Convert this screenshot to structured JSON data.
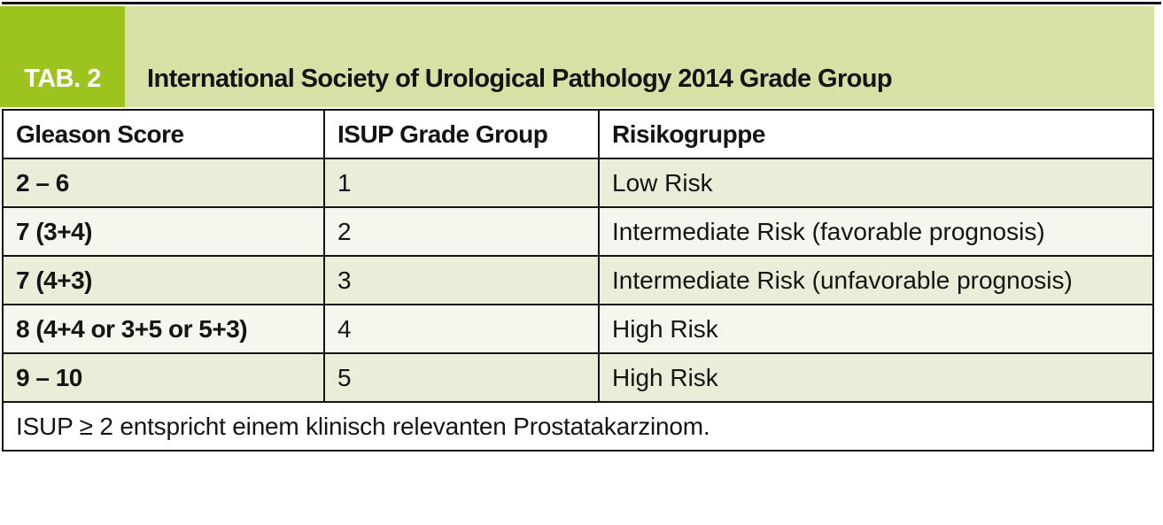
{
  "figure": {
    "tab_label": "TAB. 2",
    "title": "International Society of Urological Pathology 2014 Grade Group"
  },
  "table": {
    "columns": {
      "gleason": "Gleason Score",
      "isup": "ISUP Grade Group",
      "risk": "Risikogruppe"
    },
    "rows": [
      {
        "gleason": "2 – 6",
        "isup": "1",
        "risk": "Low Risk"
      },
      {
        "gleason": "7 (3+4)",
        "isup": "2",
        "risk": "Intermediate Risk (favorable prognosis)"
      },
      {
        "gleason": "7 (4+3)",
        "isup": "3",
        "risk": "Intermediate Risk (unfavorable prognosis)"
      },
      {
        "gleason": "8 (4+4 or 3+5 or 5+3)",
        "isup": "4",
        "risk": "High Risk"
      },
      {
        "gleason": "9 – 10",
        "isup": "5",
        "risk": "High Risk"
      }
    ],
    "footnote": "ISUP ≥ 2 entspricht einem klinisch relevanten Prostatakarzinom."
  },
  "colors": {
    "accent_green": "#9dc41e",
    "band_green": "#d8e0a6",
    "row_green": "#e9eed8",
    "row_cream": "#f5f6ee",
    "border": "#141414"
  }
}
